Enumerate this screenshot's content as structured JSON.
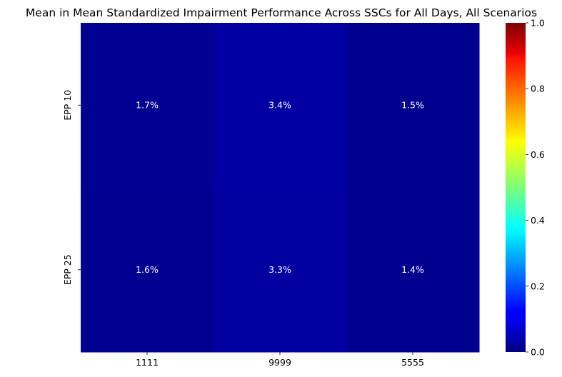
{
  "chart_data": {
    "type": "heatmap",
    "title": "Mean in Mean Standardized Impairment Performance Across SSCs for All Days, All Scenarios",
    "xlabel": "",
    "ylabel": "",
    "x_categories": [
      "1111",
      "9999",
      "5555"
    ],
    "y_categories": [
      "EPP 10",
      "EPP 25"
    ],
    "values": [
      [
        0.017,
        0.034,
        0.015
      ],
      [
        0.016,
        0.033,
        0.014
      ]
    ],
    "cell_labels": [
      [
        "1.7%",
        "3.4%",
        "1.5%"
      ],
      [
        "1.6%",
        "3.3%",
        "1.4%"
      ]
    ],
    "colormap": "jet",
    "vmin": 0,
    "vmax": 1,
    "colorbar_ticks": [
      "0.0",
      "0.2",
      "0.4",
      "0.6",
      "0.8",
      "1.0"
    ],
    "colorbar_tick_values": [
      0,
      0.2,
      0.4,
      0.6,
      0.8,
      1.0
    ],
    "annotation_color": "#ffffff",
    "tick_color": "#000000"
  }
}
